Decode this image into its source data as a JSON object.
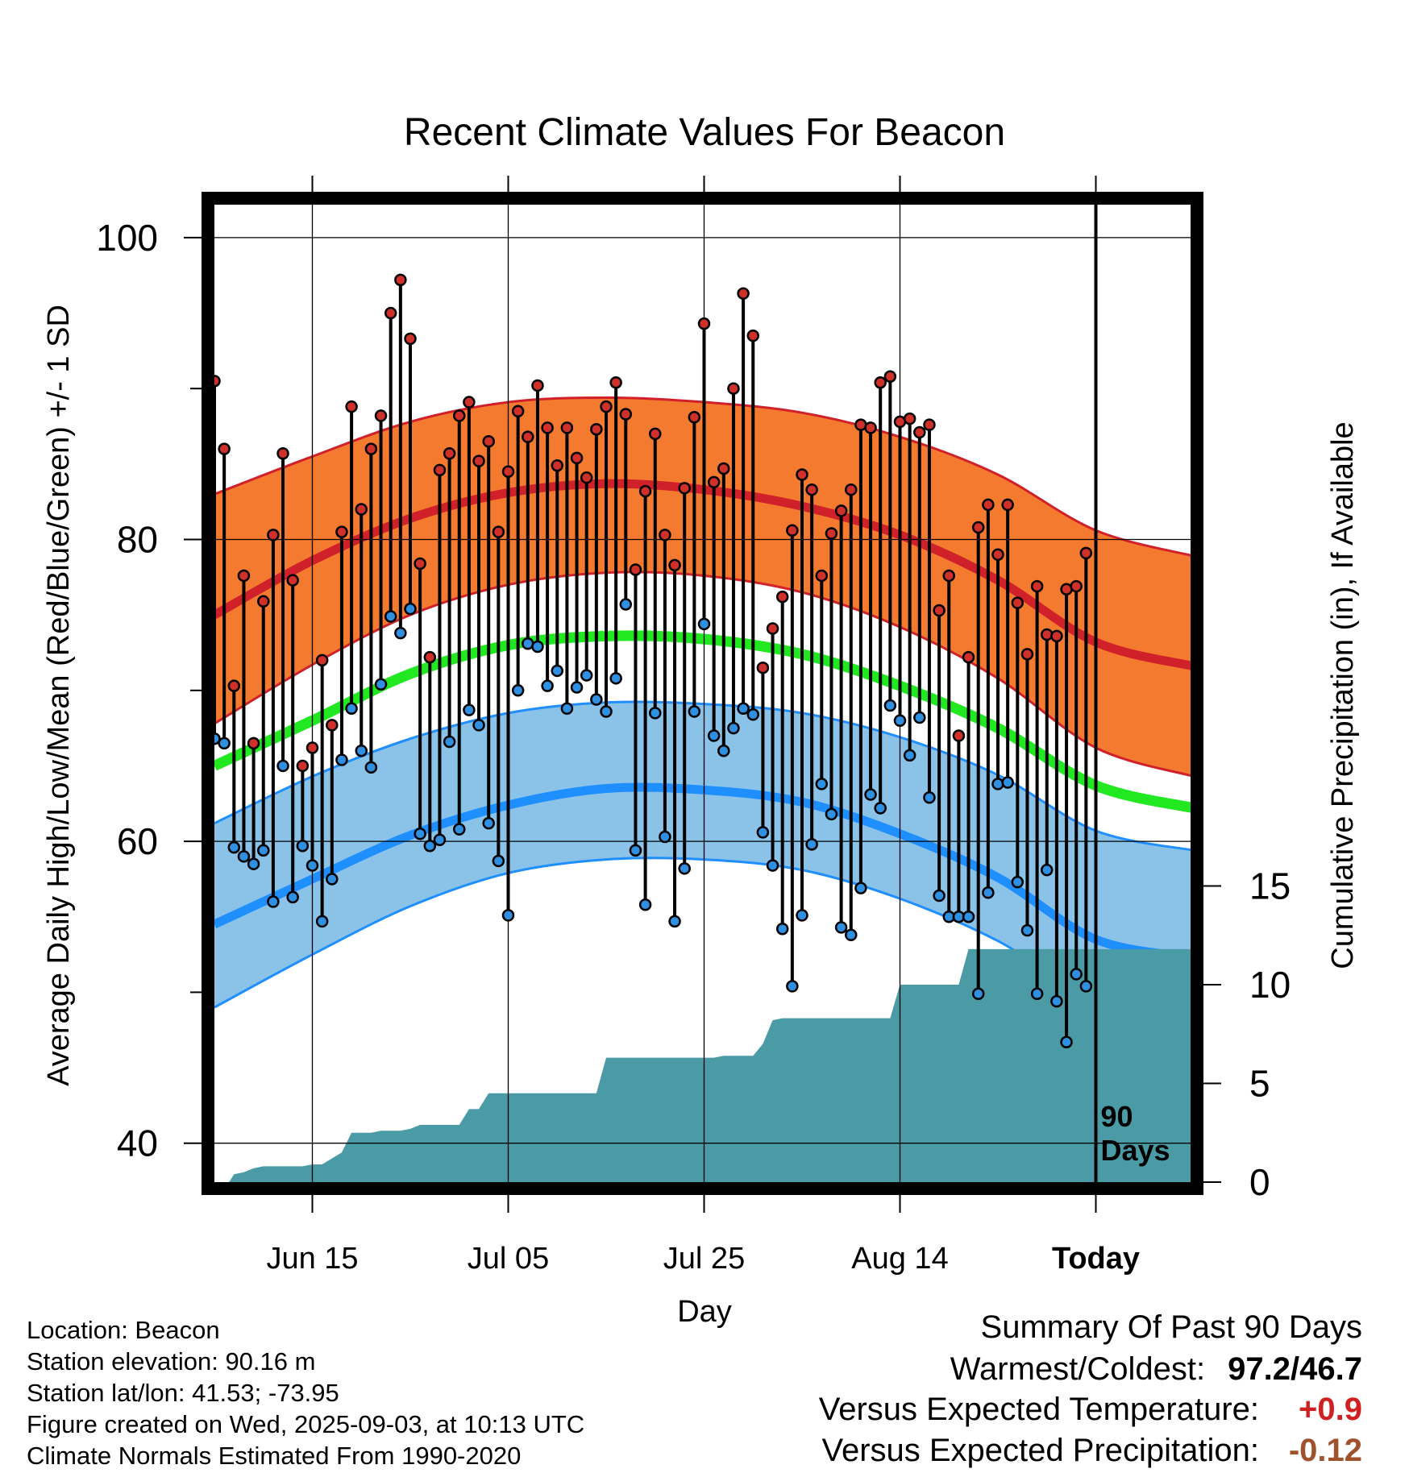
{
  "chart_data": {
    "type": "line",
    "title": "Recent Climate Values For Beacon",
    "xlabel": "Day",
    "ylabel": "Average Daily High/Low/Mean (Red/Blue/Green) +/- 1 SD",
    "y2label": "Cumulative Precipitation (in), If Available",
    "ylim": [
      37,
      103
    ],
    "y2lim": [
      0,
      15
    ],
    "yticks": [
      40,
      60,
      80,
      100
    ],
    "y2ticks": [
      0,
      5,
      10,
      15
    ],
    "xtick_labels": [
      "Jun 15",
      "Jul 05",
      "Jul 25",
      "Aug 14",
      "Today"
    ],
    "xtick_days": [
      10,
      30,
      50,
      70,
      90
    ],
    "today_marker": "90\nDays",
    "today_marker_lines": [
      "90",
      "Days"
    ],
    "grid": true,
    "colors": {
      "high_band": "#f47a30",
      "high_line": "#d0202a",
      "low_band": "#8ac2e8",
      "low_line": "#1f8fff",
      "mean_line": "#22e822",
      "precip": "#4a9ba6",
      "high_point": "#d0302a",
      "low_point": "#2f8fe0"
    },
    "normals": {
      "day": [
        0,
        10,
        20,
        30,
        40,
        50,
        60,
        70,
        80,
        90,
        100
      ],
      "high_mean": [
        75.0,
        78.6,
        81.4,
        83.1,
        83.7,
        83.3,
        82.2,
        80.3,
        77.3,
        73.2,
        71.6
      ],
      "high_plus_sd": [
        83.0,
        85.5,
        87.8,
        89.1,
        89.4,
        89.1,
        88.4,
        86.8,
        84.3,
        80.6,
        78.9
      ],
      "high_minus_sd": [
        67.8,
        71.7,
        75.0,
        77.0,
        77.8,
        77.6,
        76.5,
        74.2,
        70.8,
        66.2,
        64.3
      ],
      "mean": [
        65.0,
        68.0,
        71.1,
        73.0,
        73.6,
        73.4,
        72.4,
        70.3,
        67.5,
        63.7,
        62.2
      ],
      "low_mean": [
        54.5,
        57.5,
        60.4,
        62.4,
        63.5,
        63.4,
        62.6,
        60.5,
        57.6,
        53.5,
        52.3
      ],
      "low_plus_sd": [
        61.2,
        64.3,
        66.8,
        68.5,
        69.2,
        69.1,
        68.5,
        66.9,
        64.4,
        60.7,
        59.4
      ],
      "low_minus_sd": [
        49.0,
        52.5,
        55.7,
        57.9,
        58.8,
        58.8,
        58.1,
        56.2,
        53.4,
        49.5,
        48.5
      ]
    },
    "observed": {
      "day": [
        0,
        1,
        2,
        3,
        4,
        5,
        6,
        7,
        8,
        9,
        10,
        11,
        12,
        13,
        14,
        15,
        16,
        17,
        18,
        19,
        20,
        21,
        22,
        23,
        24,
        25,
        26,
        27,
        28,
        29,
        30,
        31,
        32,
        33,
        34,
        35,
        36,
        37,
        38,
        39,
        40,
        41,
        42,
        43,
        44,
        45,
        46,
        47,
        48,
        49,
        50,
        51,
        52,
        53,
        54,
        55,
        56,
        57,
        58,
        59,
        60,
        61,
        62,
        63,
        64,
        65,
        66,
        67,
        68,
        69,
        70,
        71,
        72,
        73,
        74,
        75,
        76,
        77,
        78,
        79,
        80,
        81,
        82,
        83,
        84,
        85,
        86,
        87,
        88,
        89
      ],
      "high": [
        90.5,
        86.0,
        70.3,
        77.6,
        66.5,
        75.9,
        80.3,
        85.7,
        77.3,
        65.0,
        66.2,
        72.0,
        67.7,
        80.5,
        88.8,
        82.0,
        86.0,
        88.2,
        95.0,
        97.2,
        93.3,
        78.4,
        72.2,
        84.6,
        85.7,
        88.2,
        89.1,
        85.2,
        86.5,
        80.5,
        84.5,
        88.5,
        86.8,
        90.2,
        87.4,
        84.9,
        87.4,
        85.4,
        84.1,
        87.3,
        88.8,
        90.4,
        88.3,
        78.0,
        83.2,
        87.0,
        80.3,
        78.3,
        83.4,
        88.1,
        94.3,
        83.8,
        84.7,
        90.0,
        96.3,
        93.5,
        71.5,
        74.1,
        76.2,
        80.6,
        84.3,
        83.3,
        77.6,
        80.4,
        81.9,
        83.3,
        87.6,
        87.4,
        90.4,
        90.8,
        87.8,
        88.0,
        87.1,
        87.6,
        75.3,
        77.6,
        67.0,
        72.2,
        80.8,
        82.3,
        79.0,
        82.3,
        75.8,
        72.4,
        76.9,
        73.7,
        73.6,
        76.7,
        76.9,
        79.1
      ],
      "low": [
        66.8,
        66.5,
        59.6,
        59.0,
        58.5,
        59.4,
        56.0,
        65.0,
        56.3,
        59.7,
        58.4,
        54.7,
        57.5,
        65.4,
        68.8,
        66.0,
        64.9,
        70.4,
        74.9,
        73.8,
        75.4,
        60.5,
        59.7,
        60.1,
        66.6,
        60.8,
        68.7,
        67.7,
        61.2,
        58.7,
        55.1,
        70.0,
        73.1,
        72.9,
        70.3,
        71.3,
        68.8,
        70.2,
        71.0,
        69.4,
        68.6,
        70.8,
        75.7,
        59.4,
        55.8,
        68.5,
        60.3,
        54.7,
        58.2,
        68.6,
        74.4,
        67.0,
        66.0,
        67.5,
        68.8,
        68.4,
        60.6,
        58.4,
        54.2,
        50.4,
        55.1,
        59.8,
        63.8,
        61.8,
        54.3,
        53.8,
        56.9,
        63.1,
        62.2,
        69.0,
        68.0,
        65.7,
        68.2,
        62.9,
        56.4,
        55.0,
        55.0,
        55.0,
        49.9,
        56.6,
        63.8,
        63.9,
        57.3,
        54.1,
        49.9,
        58.1,
        49.4,
        46.7,
        51.2,
        50.4
      ]
    },
    "precip": {
      "day": [
        0,
        1.5,
        2,
        3,
        4,
        5,
        6,
        7,
        8,
        9,
        10,
        11,
        12,
        13,
        14,
        15,
        16,
        17,
        18,
        19,
        20,
        21,
        22,
        23,
        24,
        25,
        26,
        27,
        28,
        29,
        30,
        31,
        32,
        33,
        34,
        35,
        36,
        37,
        38,
        39,
        40,
        41,
        42,
        43,
        44,
        45,
        46,
        47,
        48,
        49,
        50,
        51,
        52,
        53,
        54,
        55,
        56,
        57,
        58,
        59,
        60,
        61,
        62,
        63,
        64,
        65,
        66,
        67,
        68,
        69,
        70,
        71,
        72,
        73,
        74,
        75,
        76,
        77,
        78,
        79,
        80,
        81,
        82,
        83,
        84,
        85,
        86,
        87,
        88,
        89,
        90,
        100
      ],
      "cum": [
        0,
        0,
        0.4,
        0.5,
        0.7,
        0.8,
        0.8,
        0.8,
        0.8,
        0.8,
        0.9,
        0.9,
        1.2,
        1.5,
        2.5,
        2.5,
        2.5,
        2.6,
        2.6,
        2.6,
        2.7,
        2.9,
        2.9,
        2.9,
        2.9,
        2.9,
        3.7,
        3.7,
        4.5,
        4.5,
        4.5,
        4.5,
        4.5,
        4.5,
        4.5,
        4.5,
        4.5,
        4.5,
        4.5,
        4.5,
        6.3,
        6.3,
        6.3,
        6.3,
        6.3,
        6.3,
        6.3,
        6.3,
        6.3,
        6.3,
        6.3,
        6.3,
        6.4,
        6.4,
        6.4,
        6.4,
        7.0,
        8.2,
        8.3,
        8.3,
        8.3,
        8.3,
        8.3,
        8.3,
        8.3,
        8.3,
        8.3,
        8.3,
        8.3,
        8.3,
        10.0,
        10.0,
        10.0,
        10.0,
        10.0,
        10.0,
        10.0,
        11.8,
        11.8,
        11.8,
        11.8,
        11.8,
        11.8,
        11.8,
        11.8,
        11.8,
        11.8,
        11.8,
        11.8,
        11.8,
        11.8,
        11.8
      ]
    }
  },
  "metadata_lines": [
    "Location: Beacon",
    "Station elevation: 90.16 m",
    "Station lat/lon: 41.53; -73.95",
    "Figure created on Wed, 2025-09-03, at 10:13 UTC",
    "Climate Normals Estimated From 1990-2020"
  ],
  "summary": {
    "heading": "Summary Of Past 90 Days",
    "warmest_coldest_label": "Warmest/Coldest:",
    "warmest": "97.2",
    "separator": "/",
    "coldest": "46.7",
    "temp_label": "Versus Expected Temperature:",
    "temp_value": "+0.9",
    "temp_color": "#d02020",
    "precip_label": "Versus Expected Precipitation:",
    "precip_value": "-0.12",
    "precip_color": "#a0522d"
  }
}
